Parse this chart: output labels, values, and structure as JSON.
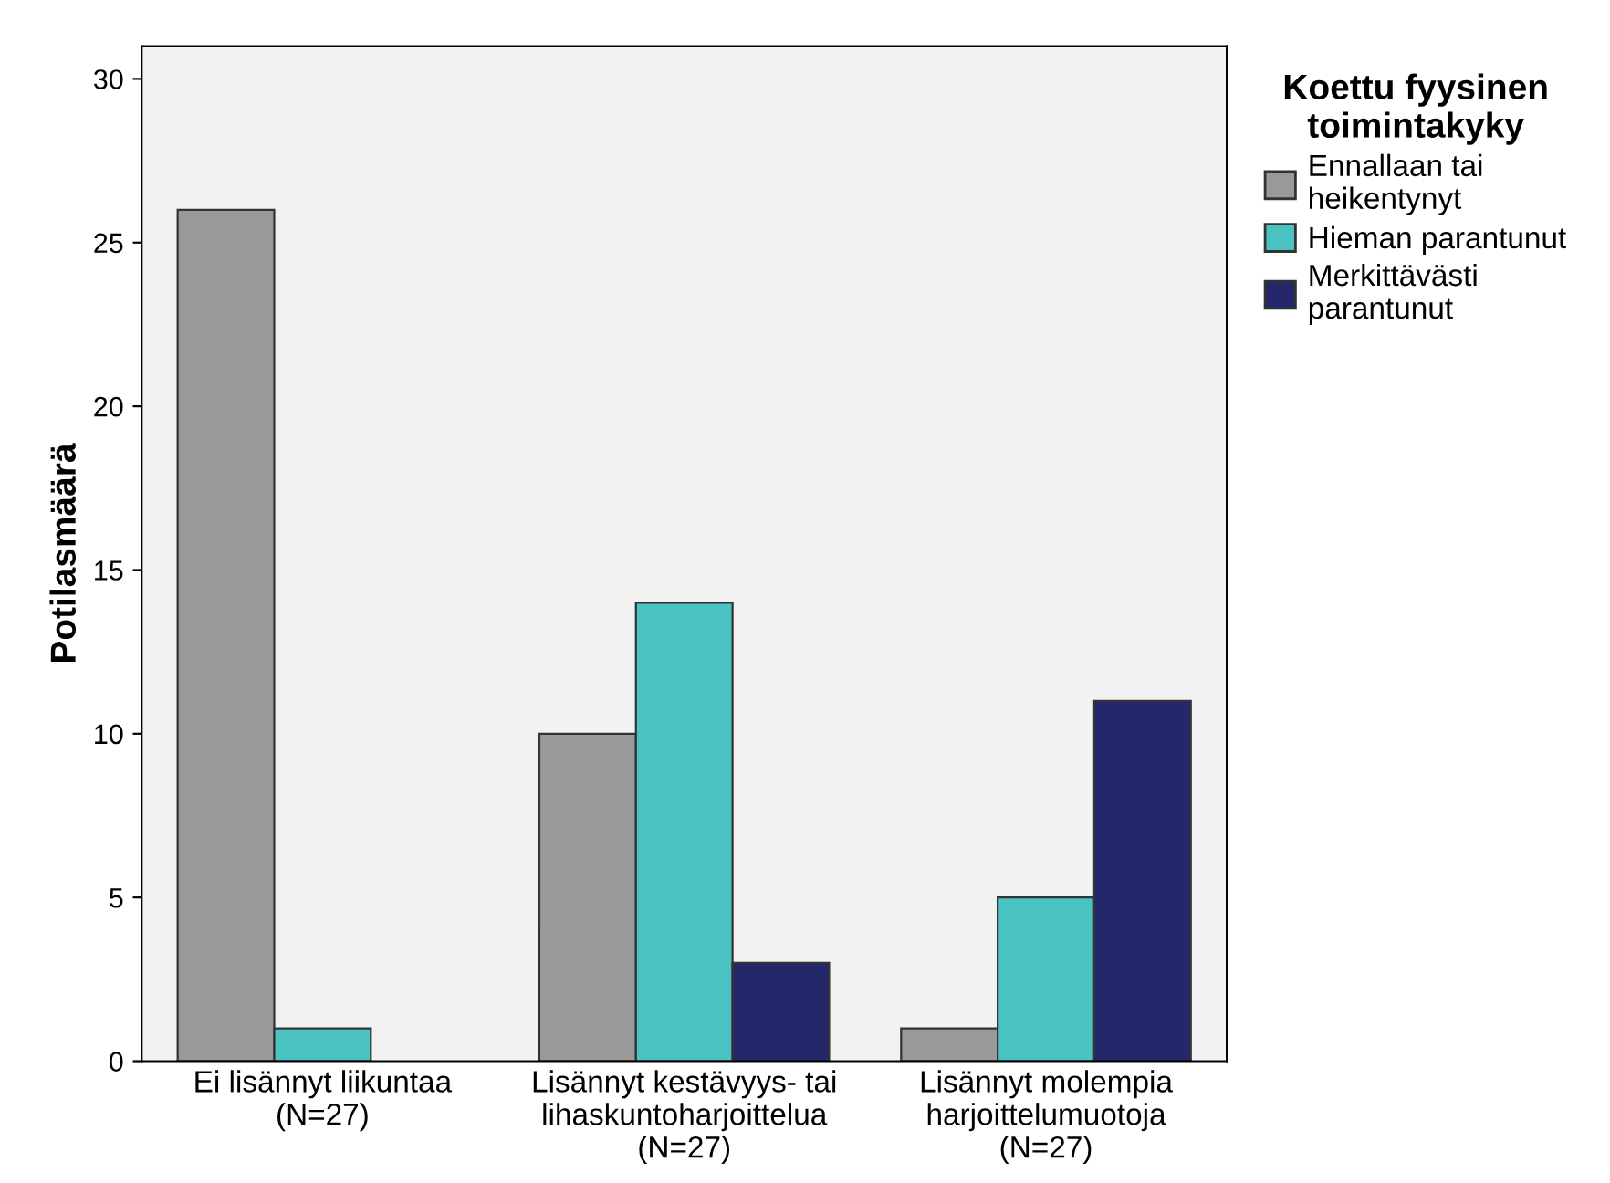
{
  "chart_data": {
    "type": "bar",
    "ylabel": "Potilasmäärä",
    "legend_title": "Koettu fyysinen\ntoimintakyky",
    "categories": [
      "Ei lisännyt liikuntaa\n(N=27)",
      "Lisännyt kestävyys- tai\nlihaskuntoharjoittelua\n(N=27)",
      "Lisännyt molempia\nharjoittelumuotoja\n(N=27)"
    ],
    "series": [
      {
        "name": "Ennallaan tai\nheikentynyt",
        "color": "#999999",
        "values": [
          26,
          10,
          1
        ]
      },
      {
        "name": "Hieman parantunut",
        "color": "#4cc3c3",
        "values": [
          1,
          14,
          5
        ]
      },
      {
        "name": "Merkittävästi\nparantunut",
        "color": "#25276b",
        "values": [
          null,
          3,
          11
        ]
      }
    ],
    "ylim": [
      0,
      31
    ],
    "yticks": [
      0,
      5,
      10,
      15,
      20,
      25,
      30
    ],
    "grid": false,
    "legend": "right"
  }
}
